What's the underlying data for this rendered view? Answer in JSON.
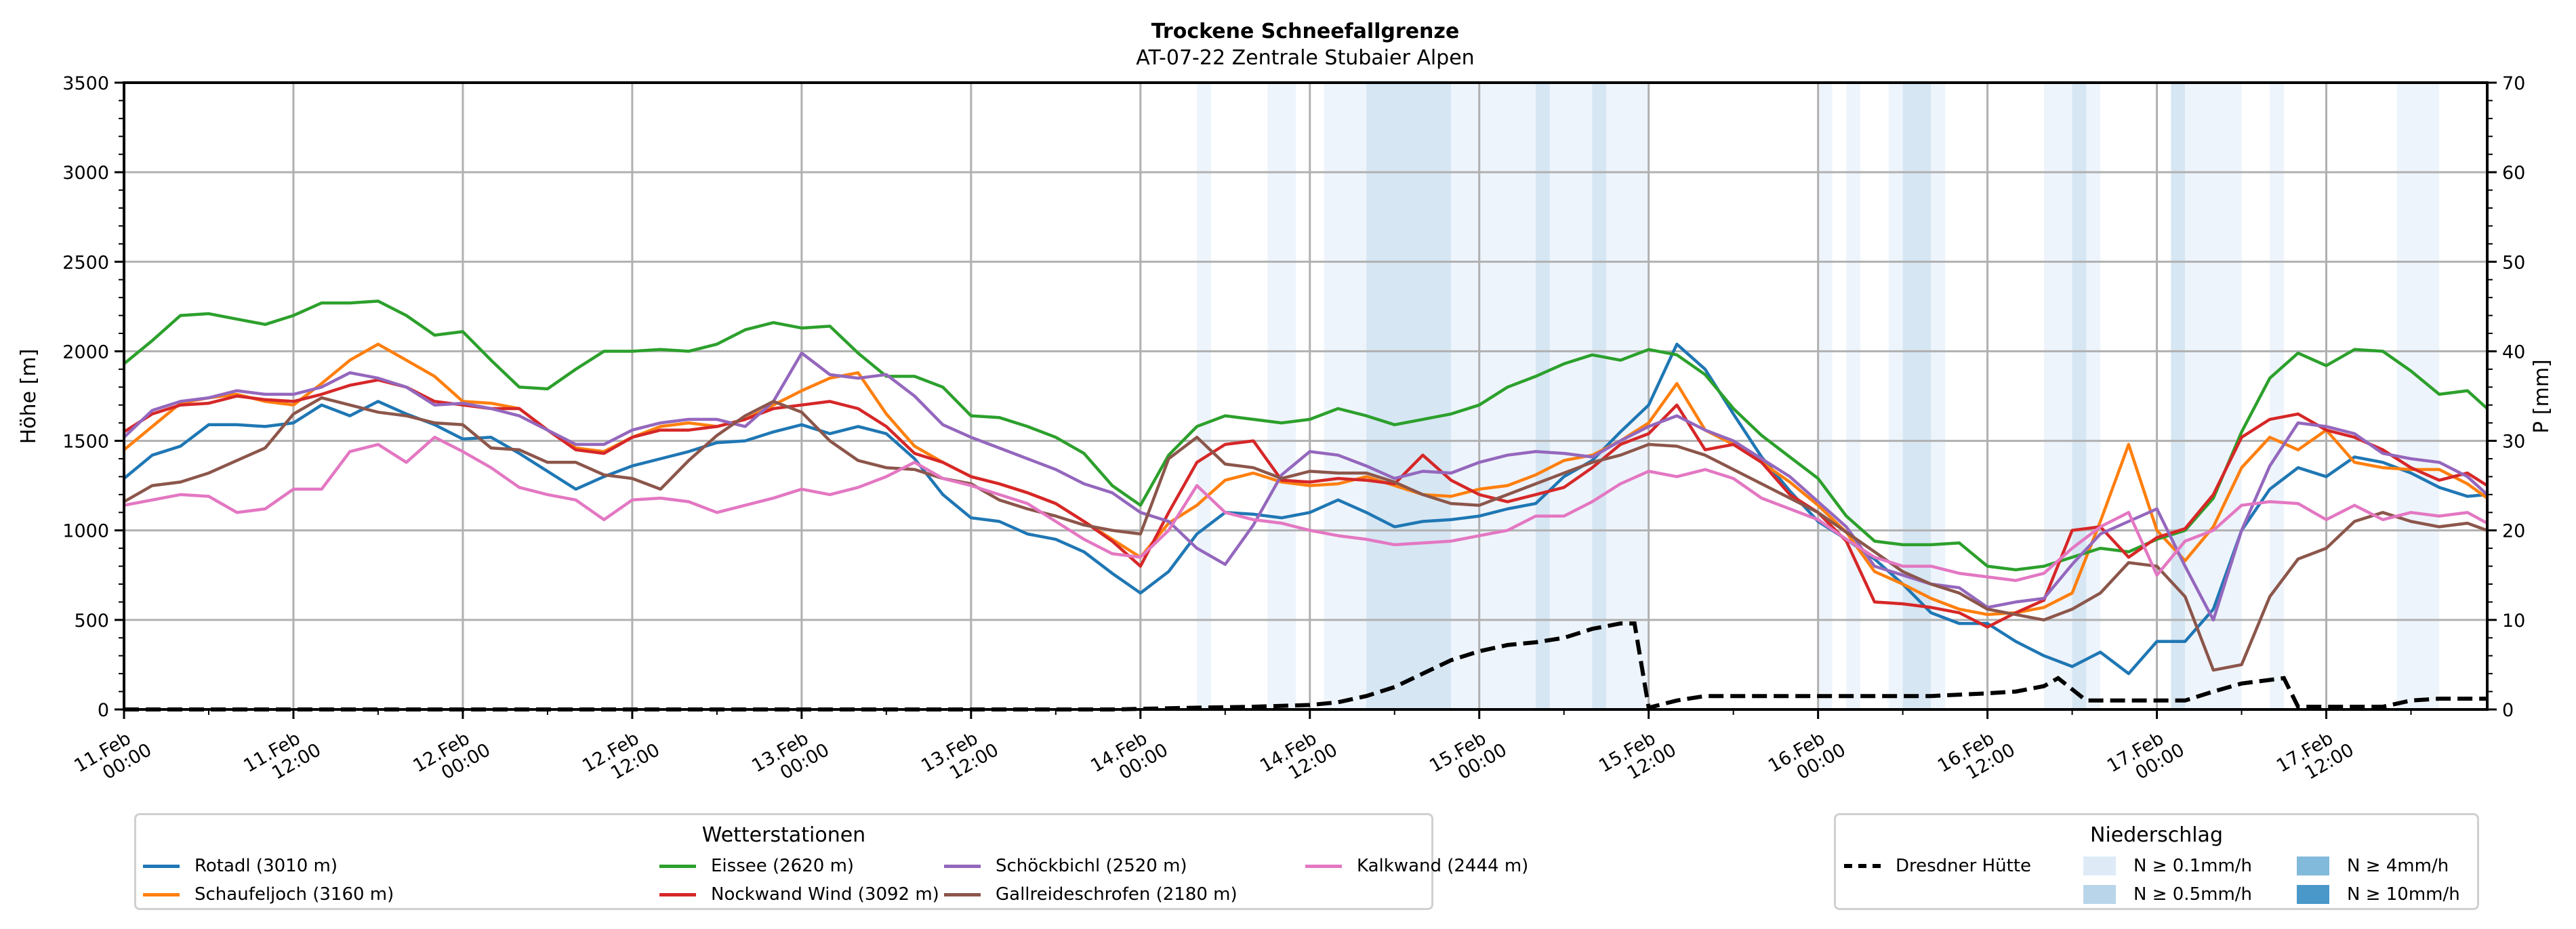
{
  "chart_data": {
    "type": "line",
    "title": "Trockene Schneefallgrenze",
    "subtitle": "AT-07-22 Zentrale Stubaier Alpen",
    "ylabel": "Höhe [m]",
    "y2label": "P [mm]",
    "ylim": [
      0,
      3500
    ],
    "y2lim": [
      0,
      70
    ],
    "yticks": [
      "0",
      "500",
      "1000",
      "1500",
      "2000",
      "2500",
      "3000",
      "3500"
    ],
    "y2ticks": [
      "0",
      "10",
      "20",
      "30",
      "40",
      "50",
      "60",
      "70"
    ],
    "grid": true,
    "x_unit": "hours since 11.Feb 00:00",
    "xlim_hours": [
      0,
      167.4
    ],
    "xticks": [
      {
        "hour": 0,
        "line1": "11.Feb",
        "line2": "00:00"
      },
      {
        "hour": 12,
        "line1": "11.Feb",
        "line2": "12:00"
      },
      {
        "hour": 24,
        "line1": "12.Feb",
        "line2": "00:00"
      },
      {
        "hour": 36,
        "line1": "12.Feb",
        "line2": "12:00"
      },
      {
        "hour": 48,
        "line1": "13.Feb",
        "line2": "00:00"
      },
      {
        "hour": 60,
        "line1": "13.Feb",
        "line2": "12:00"
      },
      {
        "hour": 72,
        "line1": "14.Feb",
        "line2": "00:00"
      },
      {
        "hour": 84,
        "line1": "14.Feb",
        "line2": "12:00"
      },
      {
        "hour": 96,
        "line1": "15.Feb",
        "line2": "00:00"
      },
      {
        "hour": 108,
        "line1": "15.Feb",
        "line2": "12:00"
      },
      {
        "hour": 120,
        "line1": "16.Feb",
        "line2": "00:00"
      },
      {
        "hour": 132,
        "line1": "16.Feb",
        "line2": "12:00"
      },
      {
        "hour": 144,
        "line1": "17.Feb",
        "line2": "00:00"
      },
      {
        "hour": 156,
        "line1": "17.Feb",
        "line2": "12:00"
      }
    ],
    "x_step_hours": 2,
    "series": [
      {
        "name": "Rotadl (3010 m)",
        "color": "#1f77b4",
        "values": [
          1290,
          1420,
          1470,
          1590,
          1590,
          1580,
          1600,
          1700,
          1640,
          1720,
          1650,
          1590,
          1510,
          1520,
          1430,
          1330,
          1230,
          1300,
          1360,
          1400,
          1440,
          1490,
          1500,
          1550,
          1590,
          1540,
          1580,
          1540,
          1400,
          1200,
          1070,
          1050,
          980,
          950,
          880,
          760,
          650,
          770,
          980,
          1100,
          1090,
          1070,
          1100,
          1170,
          1100,
          1020,
          1050,
          1060,
          1080,
          1120,
          1150,
          1300,
          1390,
          1550,
          1700,
          2040,
          1900,
          1650,
          1410,
          1220,
          1050,
          950,
          840,
          700,
          540,
          480,
          480,
          380,
          300,
          240,
          320,
          200,
          380,
          380,
          560,
          1000,
          1230,
          1350,
          1300,
          1410,
          1380,
          1320,
          1240,
          1190,
          1200
        ]
      },
      {
        "name": "Schaufeljoch (3160 m)",
        "color": "#ff7f0e",
        "values": [
          1450,
          1580,
          1710,
          1740,
          1760,
          1720,
          1700,
          1820,
          1950,
          2040,
          1950,
          1860,
          1720,
          1710,
          1680,
          1560,
          1460,
          1440,
          1520,
          1580,
          1600,
          1580,
          1620,
          1700,
          1780,
          1850,
          1880,
          1650,
          1470,
          1380,
          1300,
          1260,
          1210,
          1150,
          1050,
          950,
          850,
          1040,
          1140,
          1280,
          1320,
          1270,
          1250,
          1260,
          1300,
          1250,
          1200,
          1190,
          1230,
          1250,
          1310,
          1390,
          1420,
          1500,
          1600,
          1820,
          1560,
          1480,
          1380,
          1270,
          1140,
          990,
          770,
          700,
          620,
          560,
          530,
          540,
          570,
          650,
          1050,
          1480,
          1000,
          830,
          1020,
          1350,
          1520,
          1450,
          1560,
          1380,
          1350,
          1340,
          1340,
          1260,
          1180
        ]
      },
      {
        "name": "Eissee (2620 m)",
        "color": "#2ca02c",
        "values": [
          1930,
          2060,
          2200,
          2210,
          2180,
          2150,
          2200,
          2270,
          2270,
          2280,
          2200,
          2090,
          2110,
          1950,
          1800,
          1790,
          1900,
          2000,
          2000,
          2010,
          2000,
          2040,
          2120,
          2160,
          2130,
          2140,
          1990,
          1860,
          1860,
          1800,
          1640,
          1630,
          1580,
          1520,
          1430,
          1250,
          1140,
          1420,
          1580,
          1640,
          1620,
          1600,
          1620,
          1680,
          1640,
          1590,
          1620,
          1650,
          1700,
          1800,
          1860,
          1930,
          1980,
          1950,
          2010,
          1980,
          1870,
          1680,
          1530,
          1410,
          1290,
          1080,
          940,
          920,
          920,
          930,
          800,
          780,
          800,
          850,
          900,
          880,
          950,
          1000,
          1180,
          1550,
          1850,
          1990,
          1920,
          2010,
          2000,
          1890,
          1760,
          1780,
          1680
        ]
      },
      {
        "name": "Nockwand Wind (3092 m)",
        "color": "#d62728",
        "values": [
          1550,
          1650,
          1700,
          1710,
          1750,
          1730,
          1720,
          1760,
          1810,
          1840,
          1800,
          1720,
          1700,
          1680,
          1680,
          1560,
          1450,
          1430,
          1520,
          1560,
          1560,
          1580,
          1620,
          1680,
          1700,
          1720,
          1680,
          1580,
          1430,
          1380,
          1300,
          1260,
          1210,
          1150,
          1050,
          940,
          800,
          1100,
          1380,
          1480,
          1500,
          1280,
          1270,
          1290,
          1280,
          1260,
          1420,
          1280,
          1200,
          1160,
          1200,
          1240,
          1350,
          1480,
          1540,
          1700,
          1450,
          1480,
          1380,
          1200,
          1100,
          940,
          600,
          590,
          570,
          540,
          460,
          540,
          610,
          1000,
          1020,
          850,
          960,
          1010,
          1200,
          1520,
          1620,
          1650,
          1560,
          1520,
          1450,
          1350,
          1280,
          1320,
          1250
        ]
      },
      {
        "name": "Schöckbichl (2520 m)",
        "color": "#9467bd",
        "values": [
          1520,
          1670,
          1720,
          1740,
          1780,
          1760,
          1760,
          1800,
          1880,
          1850,
          1800,
          1700,
          1710,
          1680,
          1640,
          1560,
          1480,
          1480,
          1560,
          1600,
          1620,
          1620,
          1580,
          1720,
          1990,
          1870,
          1850,
          1870,
          1750,
          1590,
          1520,
          1460,
          1400,
          1340,
          1260,
          1210,
          1100,
          1050,
          900,
          810,
          1030,
          1310,
          1440,
          1420,
          1360,
          1290,
          1330,
          1320,
          1380,
          1420,
          1440,
          1430,
          1410,
          1500,
          1580,
          1640,
          1560,
          1500,
          1400,
          1300,
          1160,
          1020,
          800,
          750,
          700,
          680,
          570,
          600,
          620,
          810,
          980,
          1050,
          1120,
          800,
          500,
          1000,
          1360,
          1600,
          1580,
          1540,
          1430,
          1400,
          1380,
          1300,
          1200
        ]
      },
      {
        "name": "Gallreideschrofen (2180 m)",
        "color": "#8c564b",
        "values": [
          1160,
          1250,
          1270,
          1320,
          1390,
          1460,
          1650,
          1740,
          1700,
          1660,
          1640,
          1600,
          1590,
          1460,
          1450,
          1380,
          1380,
          1310,
          1290,
          1230,
          1390,
          1530,
          1640,
          1720,
          1660,
          1500,
          1390,
          1350,
          1340,
          1290,
          1260,
          1170,
          1120,
          1080,
          1030,
          1000,
          980,
          1400,
          1520,
          1370,
          1350,
          1290,
          1330,
          1320,
          1320,
          1270,
          1200,
          1150,
          1140,
          1200,
          1260,
          1320,
          1380,
          1420,
          1480,
          1470,
          1420,
          1340,
          1260,
          1180,
          1100,
          990,
          880,
          770,
          700,
          650,
          560,
          530,
          500,
          560,
          650,
          820,
          800,
          630,
          220,
          250,
          630,
          840,
          900,
          1050,
          1100,
          1050,
          1020,
          1040,
          1000
        ]
      },
      {
        "name": "Kalkwand (2444 m)",
        "color": "#e377c2",
        "values": [
          1140,
          1170,
          1200,
          1190,
          1100,
          1120,
          1230,
          1230,
          1440,
          1480,
          1380,
          1520,
          1440,
          1350,
          1240,
          1200,
          1170,
          1060,
          1170,
          1180,
          1160,
          1100,
          1140,
          1180,
          1230,
          1200,
          1240,
          1300,
          1380,
          1290,
          1250,
          1200,
          1150,
          1050,
          950,
          870,
          850,
          1000,
          1250,
          1100,
          1060,
          1040,
          1000,
          970,
          950,
          920,
          930,
          940,
          970,
          1000,
          1080,
          1080,
          1160,
          1260,
          1330,
          1300,
          1340,
          1290,
          1180,
          1120,
          1060,
          950,
          850,
          800,
          800,
          760,
          740,
          720,
          760,
          900,
          1020,
          1100,
          750,
          940,
          1000,
          1140,
          1160,
          1150,
          1060,
          1140,
          1060,
          1100,
          1080,
          1100,
          1040
        ]
      }
    ],
    "precip_sum": {
      "name": "Dresdner Hütte",
      "style": "dashed",
      "color": "#000000",
      "points": [
        [
          0,
          0
        ],
        [
          70,
          0
        ],
        [
          76,
          0.2
        ],
        [
          80,
          0.3
        ],
        [
          84,
          0.5
        ],
        [
          86,
          0.8
        ],
        [
          88,
          1.5
        ],
        [
          90,
          2.5
        ],
        [
          92,
          4.0
        ],
        [
          94,
          5.5
        ],
        [
          96,
          6.5
        ],
        [
          98,
          7.2
        ],
        [
          100,
          7.5
        ],
        [
          102,
          8.0
        ],
        [
          104,
          9.0
        ],
        [
          106,
          9.6
        ],
        [
          107,
          9.6
        ],
        [
          108,
          0.2
        ],
        [
          110,
          1.0
        ],
        [
          112,
          1.5
        ],
        [
          128,
          1.5
        ],
        [
          132,
          1.8
        ],
        [
          134,
          2.0
        ],
        [
          136,
          2.6
        ],
        [
          137,
          3.5
        ],
        [
          139,
          1.0
        ],
        [
          146,
          1.0
        ],
        [
          148,
          2.0
        ],
        [
          150,
          2.9
        ],
        [
          153,
          3.5
        ],
        [
          154,
          0.3
        ],
        [
          160,
          0.3
        ],
        [
          162,
          1.0
        ],
        [
          164,
          1.2
        ],
        [
          167.4,
          1.2
        ]
      ]
    },
    "precip_bands": [
      {
        "start": 76,
        "end": 77,
        "level": "N ≥ 0.1mm/h"
      },
      {
        "start": 81,
        "end": 83,
        "level": "N ≥ 0.1mm/h"
      },
      {
        "start": 85,
        "end": 88,
        "level": "N ≥ 0.1mm/h"
      },
      {
        "start": 88,
        "end": 94,
        "level": "N ≥ 0.5mm/h"
      },
      {
        "start": 94,
        "end": 100,
        "level": "N ≥ 0.1mm/h"
      },
      {
        "start": 100,
        "end": 101,
        "level": "N ≥ 0.5mm/h"
      },
      {
        "start": 101,
        "end": 104,
        "level": "N ≥ 0.1mm/h"
      },
      {
        "start": 104,
        "end": 105,
        "level": "N ≥ 0.5mm/h"
      },
      {
        "start": 105,
        "end": 108,
        "level": "N ≥ 0.1mm/h"
      },
      {
        "start": 120,
        "end": 121,
        "level": "N ≥ 0.1mm/h"
      },
      {
        "start": 122,
        "end": 123,
        "level": "N ≥ 0.1mm/h"
      },
      {
        "start": 125,
        "end": 126,
        "level": "N ≥ 0.1mm/h"
      },
      {
        "start": 126,
        "end": 128,
        "level": "N ≥ 0.5mm/h"
      },
      {
        "start": 128,
        "end": 129,
        "level": "N ≥ 0.1mm/h"
      },
      {
        "start": 136,
        "end": 138,
        "level": "N ≥ 0.1mm/h"
      },
      {
        "start": 138,
        "end": 139,
        "level": "N ≥ 0.5mm/h"
      },
      {
        "start": 139,
        "end": 140,
        "level": "N ≥ 0.1mm/h"
      },
      {
        "start": 145,
        "end": 146,
        "level": "N ≥ 0.5mm/h"
      },
      {
        "start": 146,
        "end": 150,
        "level": "N ≥ 0.1mm/h"
      },
      {
        "start": 152,
        "end": 153,
        "level": "N ≥ 0.1mm/h"
      },
      {
        "start": 161,
        "end": 164,
        "level": "N ≥ 0.1mm/h"
      }
    ],
    "band_colors": {
      "N ≥ 0.1mm/h": "#eef4fb",
      "N ≥ 0.5mm/h": "#d6e6f3"
    },
    "legends": [
      {
        "title": "Wetterstationen",
        "placement": "bottom-left",
        "entries": [
          "Rotadl (3010 m)",
          "Schaufeljoch (3160 m)",
          "Eissee (2620 m)",
          "Nockwand Wind (3092 m)",
          "Schöckbichl (2520 m)",
          "Gallreideschrofen (2180 m)",
          "Kalkwand (2444 m)"
        ]
      },
      {
        "title": "Niederschlag",
        "placement": "bottom-right",
        "entries": [
          {
            "label": "Dresdner Hütte",
            "kind": "dashed-line",
            "color": "#000000"
          },
          {
            "label": "N ≥ 0.1mm/h",
            "kind": "patch",
            "color": "#deebf7"
          },
          {
            "label": "N ≥ 0.5mm/h",
            "kind": "patch",
            "color": "#b9d5ea"
          },
          {
            "label": "N ≥ 4mm/h",
            "kind": "patch",
            "color": "#82badb"
          },
          {
            "label": "N ≥ 10mm/h",
            "kind": "patch",
            "color": "#4a98c9"
          }
        ]
      }
    ]
  }
}
